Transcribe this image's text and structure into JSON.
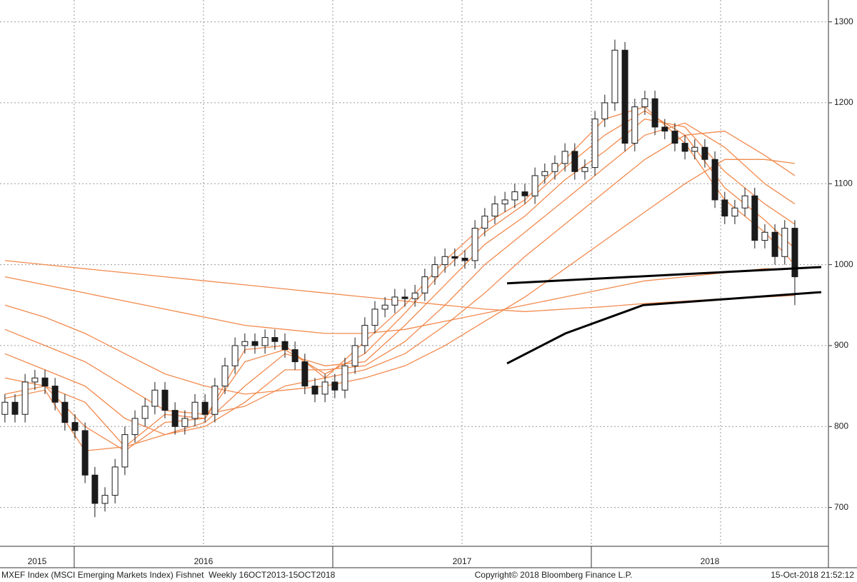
{
  "chart_data": {
    "type": "candlestick",
    "title": "MXEF Index (MSCI Emerging Markets Index) Fishnet  Weekly 16OCT2013-15OCT2018",
    "source": "Copyright© 2018 Bloomberg Finance L.P.",
    "timestamp": "15-Oct-2018 21:52:12",
    "xlim": [
      2015.713,
      2018.917
    ],
    "xticks": [
      {
        "value": 2015,
        "label": "2015"
      },
      {
        "value": 2016,
        "label": "2016"
      },
      {
        "value": 2017,
        "label": "2017"
      },
      {
        "value": 2018,
        "label": "2018"
      }
    ],
    "xgrid": [
      2016,
      2016.5,
      2017,
      2017.5,
      2018,
      2018.5
    ],
    "ylim": [
      652,
      1327
    ],
    "yticks": [
      700,
      800,
      900,
      1000,
      1100,
      1200,
      1300
    ],
    "grid": true,
    "up_color": "#ffffff",
    "down_color": "#1a1a1a",
    "candles": {
      "x": [
        2015.732,
        2015.771,
        2015.81,
        2015.848,
        2015.887,
        2015.926,
        2015.964,
        2016.003,
        2016.042,
        2016.08,
        2016.119,
        2016.158,
        2016.196,
        2016.235,
        2016.274,
        2016.312,
        2016.351,
        2016.39,
        2016.428,
        2016.467,
        2016.506,
        2016.544,
        2016.583,
        2016.622,
        2016.66,
        2016.699,
        2016.738,
        2016.776,
        2016.815,
        2016.854,
        2016.892,
        2016.931,
        2016.97,
        2017.008,
        2017.047,
        2017.086,
        2017.124,
        2017.163,
        2017.202,
        2017.24,
        2017.279,
        2017.318,
        2017.356,
        2017.395,
        2017.434,
        2017.472,
        2017.511,
        2017.55,
        2017.588,
        2017.627,
        2017.666,
        2017.704,
        2017.743,
        2017.782,
        2017.82,
        2017.859,
        2017.898,
        2017.936,
        2017.975,
        2018.014,
        2018.052,
        2018.091,
        2018.13,
        2018.168,
        2018.207,
        2018.246,
        2018.284,
        2018.323,
        2018.362,
        2018.4,
        2018.439,
        2018.478,
        2018.516,
        2018.555,
        2018.594,
        2018.632,
        2018.671,
        2018.71,
        2018.748,
        2018.787
      ],
      "open": [
        815,
        830,
        815,
        855,
        860,
        850,
        830,
        805,
        795,
        740,
        705,
        715,
        750,
        790,
        810,
        825,
        845,
        820,
        800,
        810,
        830,
        815,
        850,
        875,
        900,
        905,
        900,
        910,
        905,
        895,
        880,
        850,
        840,
        855,
        845,
        875,
        900,
        925,
        945,
        950,
        960,
        958,
        965,
        985,
        1000,
        1010,
        1008,
        1005,
        1045,
        1060,
        1075,
        1080,
        1090,
        1085,
        1110,
        1115,
        1125,
        1140,
        1115,
        1120,
        1180,
        1200,
        1265,
        1150,
        1195,
        1205,
        1170,
        1165,
        1150,
        1140,
        1145,
        1130,
        1080,
        1060,
        1070,
        1085,
        1030,
        1040,
        1010,
        1045
      ],
      "high": [
        840,
        840,
        865,
        870,
        870,
        860,
        840,
        815,
        805,
        750,
        725,
        760,
        800,
        820,
        835,
        855,
        855,
        830,
        820,
        840,
        840,
        860,
        885,
        910,
        915,
        915,
        920,
        920,
        915,
        905,
        890,
        860,
        865,
        865,
        885,
        910,
        935,
        955,
        960,
        970,
        970,
        975,
        995,
        1010,
        1020,
        1020,
        1018,
        1055,
        1070,
        1085,
        1090,
        1100,
        1100,
        1120,
        1125,
        1135,
        1150,
        1150,
        1130,
        1190,
        1210,
        1278,
        1275,
        1205,
        1215,
        1215,
        1180,
        1175,
        1160,
        1155,
        1155,
        1140,
        1090,
        1080,
        1095,
        1095,
        1050,
        1050,
        1055,
        1055
      ],
      "low": [
        805,
        805,
        805,
        845,
        840,
        820,
        795,
        785,
        730,
        688,
        695,
        705,
        740,
        780,
        800,
        815,
        810,
        790,
        790,
        800,
        805,
        805,
        840,
        865,
        890,
        890,
        890,
        895,
        885,
        870,
        840,
        830,
        830,
        835,
        835,
        865,
        890,
        915,
        935,
        940,
        948,
        948,
        955,
        975,
        990,
        998,
        995,
        995,
        1035,
        1050,
        1065,
        1070,
        1075,
        1075,
        1100,
        1105,
        1115,
        1105,
        1105,
        1110,
        1170,
        1190,
        1140,
        1140,
        1185,
        1160,
        1155,
        1140,
        1130,
        1130,
        1120,
        1070,
        1050,
        1050,
        1060,
        1020,
        1020,
        1000,
        1000,
        950
      ],
      "close": [
        830,
        815,
        855,
        860,
        850,
        830,
        805,
        795,
        740,
        705,
        715,
        750,
        790,
        810,
        825,
        845,
        820,
        800,
        810,
        830,
        815,
        850,
        875,
        900,
        905,
        900,
        910,
        905,
        895,
        880,
        850,
        840,
        855,
        845,
        875,
        900,
        925,
        945,
        950,
        960,
        958,
        965,
        985,
        1000,
        1010,
        1008,
        1005,
        1045,
        1060,
        1075,
        1080,
        1090,
        1085,
        1110,
        1115,
        1125,
        1140,
        1115,
        1120,
        1180,
        1200,
        1265,
        1150,
        1195,
        1205,
        1170,
        1165,
        1150,
        1140,
        1145,
        1130,
        1080,
        1060,
        1070,
        1085,
        1030,
        1040,
        1010,
        1045,
        985
      ]
    },
    "fishnet": {
      "color": "#f28a4e",
      "x": [
        2015.732,
        2015.887,
        2016.042,
        2016.196,
        2016.351,
        2016.506,
        2016.66,
        2016.815,
        2016.97,
        2017.124,
        2017.279,
        2017.434,
        2017.588,
        2017.743,
        2017.898,
        2018.052,
        2018.207,
        2018.362,
        2018.516,
        2018.671,
        2018.787
      ],
      "series": [
        {
          "values": [
            835,
            845,
            770,
            775,
            815,
            810,
            895,
            900,
            860,
            905,
            950,
            1005,
            1050,
            1080,
            1130,
            1180,
            1195,
            1150,
            1080,
            1040,
            1000
          ]
        },
        {
          "values": [
            840,
            850,
            800,
            770,
            805,
            810,
            880,
            895,
            865,
            890,
            940,
            995,
            1040,
            1075,
            1120,
            1160,
            1190,
            1160,
            1095,
            1055,
            1020
          ]
        },
        {
          "values": [
            860,
            850,
            830,
            775,
            790,
            805,
            850,
            890,
            875,
            880,
            925,
            975,
            1025,
            1060,
            1105,
            1140,
            1180,
            1170,
            1115,
            1075,
            1050
          ]
        },
        {
          "values": [
            890,
            870,
            850,
            810,
            790,
            800,
            830,
            870,
            870,
            875,
            905,
            950,
            1000,
            1040,
            1080,
            1120,
            1160,
            1175,
            1145,
            1100,
            1075
          ]
        },
        {
          "values": [
            920,
            900,
            880,
            850,
            820,
            815,
            825,
            850,
            860,
            870,
            890,
            925,
            965,
            1010,
            1050,
            1090,
            1130,
            1160,
            1165,
            1135,
            1110
          ]
        },
        {
          "values": [
            950,
            935,
            915,
            890,
            865,
            850,
            840,
            845,
            850,
            860,
            875,
            900,
            930,
            960,
            995,
            1030,
            1065,
            1100,
            1130,
            1130,
            1125
          ]
        },
        {
          "values": [
            985,
            975,
            965,
            955,
            945,
            935,
            925,
            920,
            915,
            915,
            920,
            930,
            940,
            950,
            960,
            970,
            980,
            985,
            990,
            995,
            995
          ]
        },
        {
          "values": [
            1005,
            1000,
            995,
            990,
            985,
            980,
            975,
            970,
            965,
            960,
            955,
            950,
            945,
            942,
            945,
            948,
            952,
            955,
            958,
            960,
            962
          ]
        }
      ]
    },
    "trendlines": {
      "color": "#000000",
      "lines": [
        {
          "x": [
            2017.674,
            2018.889
          ],
          "values": [
            977,
            997
          ]
        },
        {
          "x": [
            2017.674,
            2017.9,
            2018.2,
            2018.889
          ],
          "values": [
            878,
            915,
            950,
            966
          ]
        }
      ]
    }
  }
}
